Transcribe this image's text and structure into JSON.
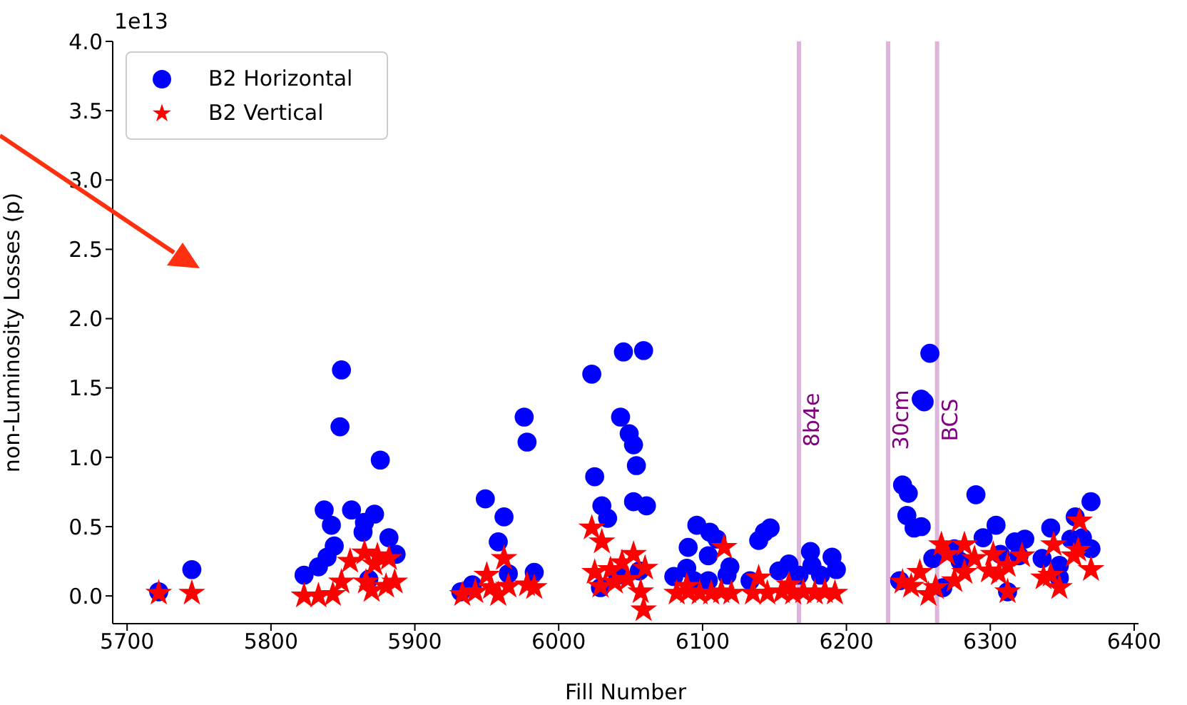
{
  "chart_data": {
    "type": "scatter",
    "xlabel": "Fill Number",
    "ylabel": "non-Luminosity Losses (p)",
    "annotations": [
      "1e13"
    ],
    "xlim": [
      5690,
      6403
    ],
    "ylim": [
      -0.2,
      4.0
    ],
    "xticks": [
      5700,
      5800,
      5900,
      6000,
      6100,
      6200,
      6300,
      6400
    ],
    "yticks": [
      {
        "value": 0,
        "label": "0.0"
      },
      {
        "value": 0.5,
        "label": "0.5"
      },
      {
        "value": 1,
        "label": "1.0"
      },
      {
        "value": 1.5,
        "label": "1.5"
      },
      {
        "value": 2,
        "label": "2.0"
      },
      {
        "value": 2.5,
        "label": "2.5"
      },
      {
        "value": 3,
        "label": "3.0"
      },
      {
        "value": 3.5,
        "label": "3.5"
      },
      {
        "value": 4,
        "label": "4.0"
      }
    ],
    "legend": "top left",
    "grid": false,
    "ref_lines": [
      {
        "axis": "x",
        "value": 6167,
        "label": "8b4e",
        "color": "#dcb4dc"
      },
      {
        "axis": "x",
        "value": 6229,
        "label": "30cm",
        "color": "#dcb4dc"
      },
      {
        "axis": "x",
        "value": 6263,
        "label": "BCS",
        "color": "#dcb4dc"
      }
    ],
    "series": [
      {
        "name": "B2 Horizontal",
        "color": "#0000ff",
        "marker": "circle",
        "x": [
          5722,
          5745,
          5823,
          5837,
          5842,
          5844,
          5839,
          5833,
          5849,
          5848,
          5856,
          5864,
          5865,
          5872,
          5868,
          5876,
          5882,
          5887,
          5932,
          5940,
          5949,
          5962,
          5958,
          5965,
          5983,
          5976,
          5978,
          6023,
          6025,
          6030,
          6034,
          6029,
          6045,
          6059,
          6043,
          6049,
          6052,
          6054,
          6052,
          6061,
          6056,
          6041,
          6080,
          6089,
          6090,
          6096,
          6104,
          6105,
          6110,
          6104,
          6117,
          6119,
          6094,
          6133,
          6139,
          6143,
          6147,
          6153,
          6160,
          6175,
          6176,
          6190,
          6193,
          6167,
          6182,
          6239,
          6243,
          6242,
          6247,
          6252,
          6252,
          6254,
          6258,
          6237,
          6260,
          6290,
          6275,
          6295,
          6304,
          6317,
          6324,
          6307,
          6320,
          6279,
          6312,
          6267,
          6336,
          6342,
          6348,
          6359,
          6356,
          6364,
          6370,
          6370,
          6348
        ],
        "values": [
          0.03,
          0.19,
          0.15,
          0.62,
          0.51,
          0.36,
          0.28,
          0.21,
          1.63,
          1.22,
          0.62,
          0.46,
          0.53,
          0.59,
          0.12,
          0.98,
          0.42,
          0.3,
          0.03,
          0.08,
          0.7,
          0.57,
          0.39,
          0.16,
          0.17,
          1.29,
          1.11,
          1.6,
          0.86,
          0.65,
          0.56,
          0.06,
          1.76,
          1.77,
          1.29,
          1.17,
          1.09,
          0.94,
          0.68,
          0.65,
          0.18,
          0.15,
          0.14,
          0.2,
          0.35,
          0.51,
          0.29,
          0.46,
          0.41,
          0.11,
          0.15,
          0.21,
          0.11,
          0.11,
          0.4,
          0.46,
          0.49,
          0.18,
          0.23,
          0.32,
          0.22,
          0.28,
          0.19,
          0.15,
          0.15,
          0.8,
          0.74,
          0.58,
          0.49,
          0.5,
          1.42,
          1.4,
          1.75,
          0.11,
          0.27,
          0.73,
          0.34,
          0.42,
          0.51,
          0.39,
          0.41,
          0.3,
          0.29,
          0.25,
          0.03,
          0.06,
          0.27,
          0.49,
          0.22,
          0.57,
          0.41,
          0.42,
          0.34,
          0.68,
          0.13
        ]
      },
      {
        "name": "B2 Vertical",
        "color": "#ff0000",
        "marker": "star",
        "x": [
          5722,
          5745,
          5823,
          5833,
          5843,
          5849,
          5855,
          5865,
          5874,
          5882,
          5866,
          5870,
          5880,
          5886,
          5872,
          5933,
          5942,
          5950,
          5962,
          5953,
          5965,
          5978,
          5983,
          5958,
          6023,
          6030,
          6025,
          6036,
          6044,
          6052,
          6060,
          6048,
          6057,
          6059,
          6029,
          6039,
          6082,
          6090,
          6098,
          6106,
          6113,
          6120,
          6115,
          6089,
          6139,
          6135,
          6145,
          6155,
          6163,
          6170,
          6178,
          6185,
          6192,
          6160,
          6239,
          6251,
          6257,
          6262,
          6266,
          6245,
          6270,
          6282,
          6289,
          6302,
          6312,
          6322,
          6312,
          6275,
          6299,
          6282,
          6306,
          6337,
          6344,
          6342,
          6348,
          6358,
          6362,
          6370,
          6361
        ],
        "values": [
          0.02,
          0.02,
          0.0,
          0.0,
          0.01,
          0.1,
          0.25,
          0.31,
          0.29,
          0.27,
          0.1,
          0.04,
          0.07,
          0.1,
          0.23,
          0.01,
          0.03,
          0.15,
          0.27,
          0.06,
          0.07,
          0.08,
          0.06,
          0.01,
          0.49,
          0.39,
          0.17,
          0.19,
          0.24,
          0.3,
          0.2,
          0.12,
          0.03,
          -0.1,
          0.07,
          0.1,
          0.02,
          0.03,
          0.02,
          0.02,
          0.03,
          0.02,
          0.35,
          0.07,
          0.13,
          0.02,
          0.02,
          0.03,
          0.02,
          0.03,
          0.02,
          0.03,
          0.02,
          0.08,
          0.1,
          0.17,
          0.01,
          0.06,
          0.37,
          0.07,
          0.3,
          0.37,
          0.27,
          0.3,
          0.22,
          0.29,
          0.03,
          0.11,
          0.18,
          0.17,
          0.16,
          0.13,
          0.37,
          0.15,
          0.06,
          0.29,
          0.54,
          0.19,
          0.33
        ]
      }
    ]
  }
}
